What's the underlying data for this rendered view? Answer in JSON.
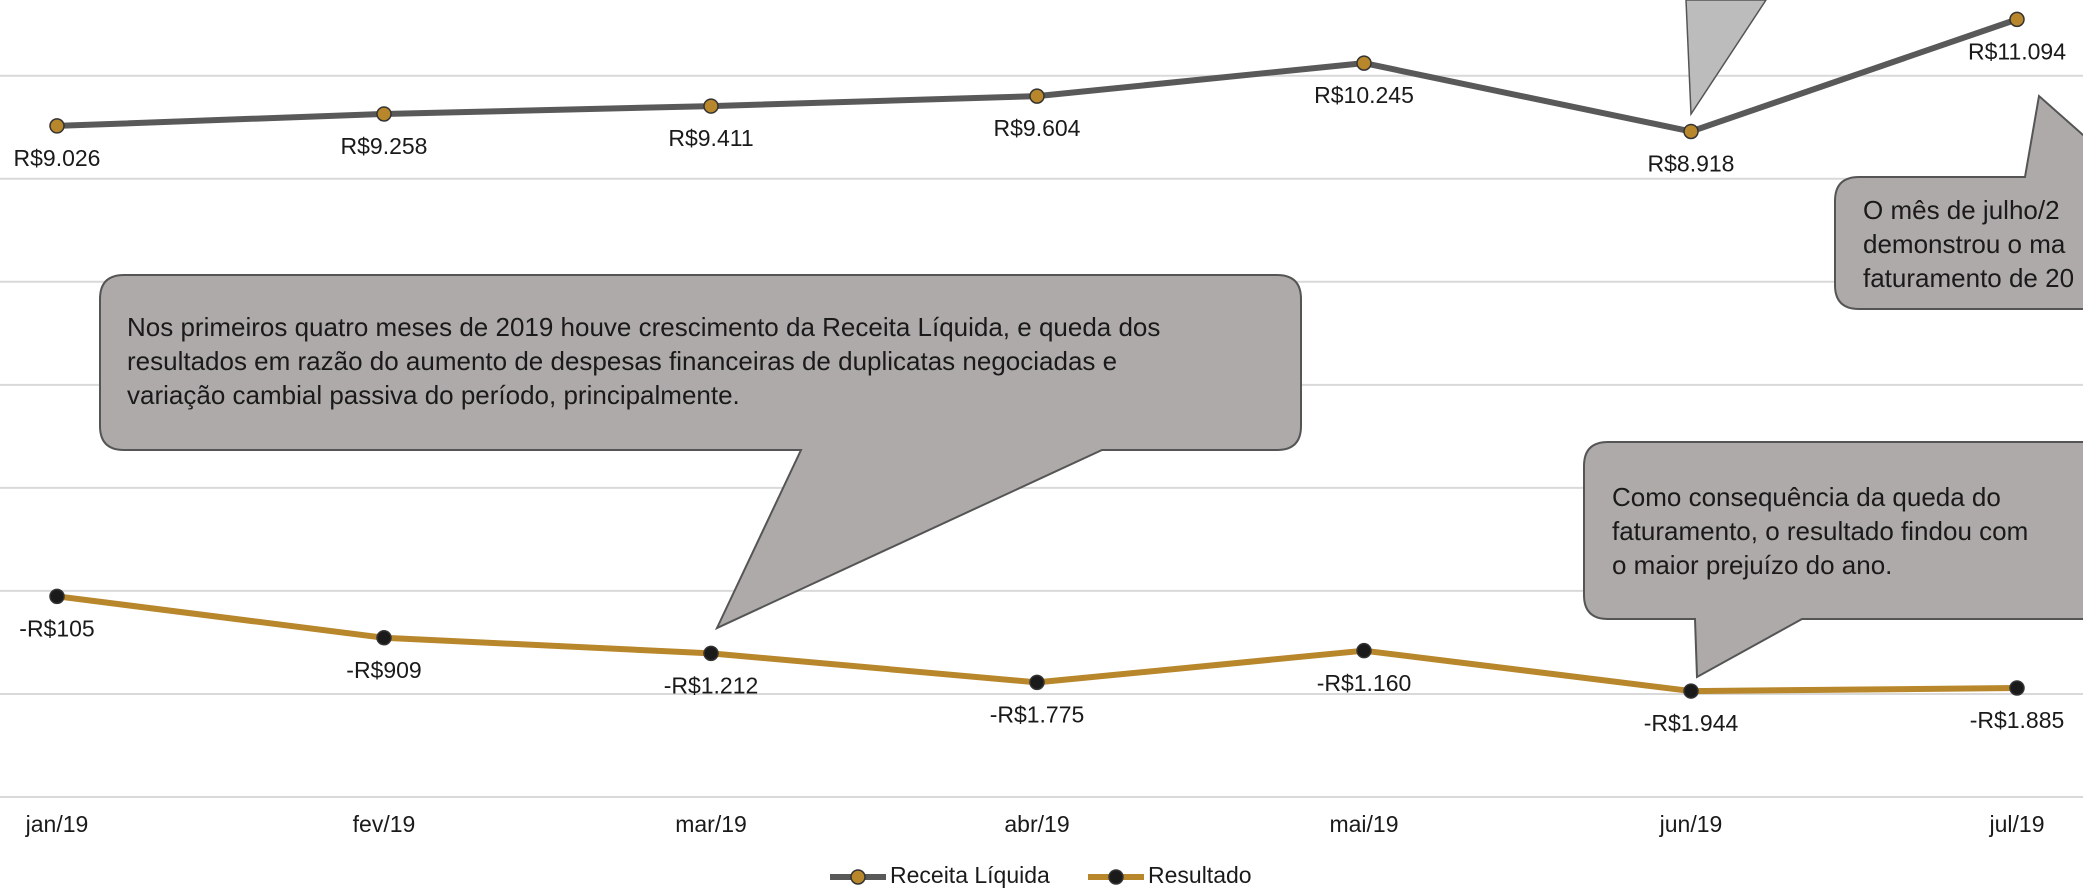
{
  "chart_data": {
    "type": "line",
    "categories": [
      "jan/19",
      "fev/19",
      "mar/19",
      "abr/19",
      "mai/19",
      "jun/19",
      "jul/19"
    ],
    "series": [
      {
        "name": "Receita Líquida",
        "color": "#595959",
        "marker_color": "#b8862b",
        "values": [
          9026,
          9258,
          9411,
          9604,
          10245,
          8918,
          11094
        ],
        "value_labels": [
          "R$9.026",
          "R$9.258",
          "R$9.411",
          "R$9.604",
          "R$10.245",
          "R$8.918",
          "R$11.094"
        ]
      },
      {
        "name": "Resultado",
        "color": "#b8862b",
        "marker_color": "#1a1a1a",
        "values": [
          -105,
          -909,
          -1212,
          -1775,
          -1160,
          -1944,
          -1885
        ],
        "value_labels": [
          "-R$105",
          "-R$909",
          "-R$1.212",
          "-R$1.775",
          "-R$1.160",
          "-R$1.944",
          "-R$1.885"
        ]
      }
    ],
    "ylim": [
      -4000,
      11470
    ],
    "yticks": [
      -4000,
      -2000,
      0,
      2000,
      4000,
      6000,
      8000,
      10000
    ],
    "grid": true,
    "legend": "bottom",
    "annotations": [
      {
        "lines": [
          "Nos primeiros quatro meses de 2019 houve crescimento da Receita Líquida, e queda dos",
          "resultados em razão do aumento de despesas financeiras de duplicatas negociadas e",
          "variação cambial passiva do período, principalmente."
        ]
      },
      {
        "lines": [
          "Como consequência da queda do",
          "faturamento, o resultado findou com",
          "o maior prejuízo do ano."
        ]
      },
      {
        "lines": [
          "O  mês de julho/2",
          "demonstrou o ma",
          "faturamento de 20"
        ]
      }
    ]
  }
}
